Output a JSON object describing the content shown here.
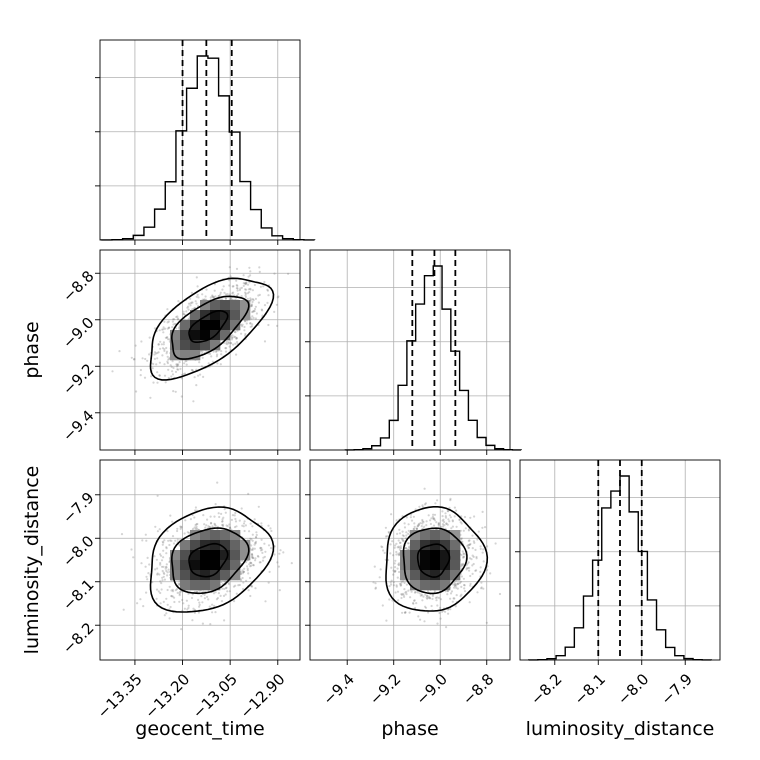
{
  "chart_data": {
    "type": "corner",
    "parameters": [
      {
        "name": "geocent_time",
        "label": "geocent_time",
        "range": [
          -13.46,
          -12.83
        ],
        "ticks": [
          -13.35,
          -13.2,
          -13.05,
          -12.9
        ],
        "tick_labels": [
          "−13.35",
          "−13.20",
          "−13.05",
          "−12.90"
        ],
        "mean": -13.12,
        "sd": 0.08,
        "quantiles": [
          -13.2,
          -13.125,
          -13.045
        ]
      },
      {
        "name": "phase",
        "label": "phase",
        "range": [
          -9.56,
          -8.7
        ],
        "ticks": [
          -9.4,
          -9.2,
          -9.0,
          -8.8
        ],
        "tick_labels": [
          "−9.4",
          "−9.2",
          "−9.0",
          "−8.8"
        ],
        "mean": -9.03,
        "sd": 0.09,
        "quantiles": [
          -9.12,
          -9.025,
          -8.935
        ]
      },
      {
        "name": "luminosity_distance",
        "label": "luminosity_distance",
        "range": [
          -8.28,
          -7.82
        ],
        "ticks": [
          -8.2,
          -8.1,
          -8.0,
          -7.9
        ],
        "tick_labels": [
          "−8.2",
          "−8.1",
          "−8.0",
          "−7.9"
        ],
        "mean": -8.05,
        "sd": 0.05,
        "quantiles": [
          -8.1,
          -8.05,
          -8.0
        ]
      }
    ],
    "correlations": {
      "1_0": 0.6,
      "2_0": 0.25,
      "2_1": 0.05
    },
    "histogram_bins": 20,
    "grid": true,
    "contour_levels": 3
  }
}
